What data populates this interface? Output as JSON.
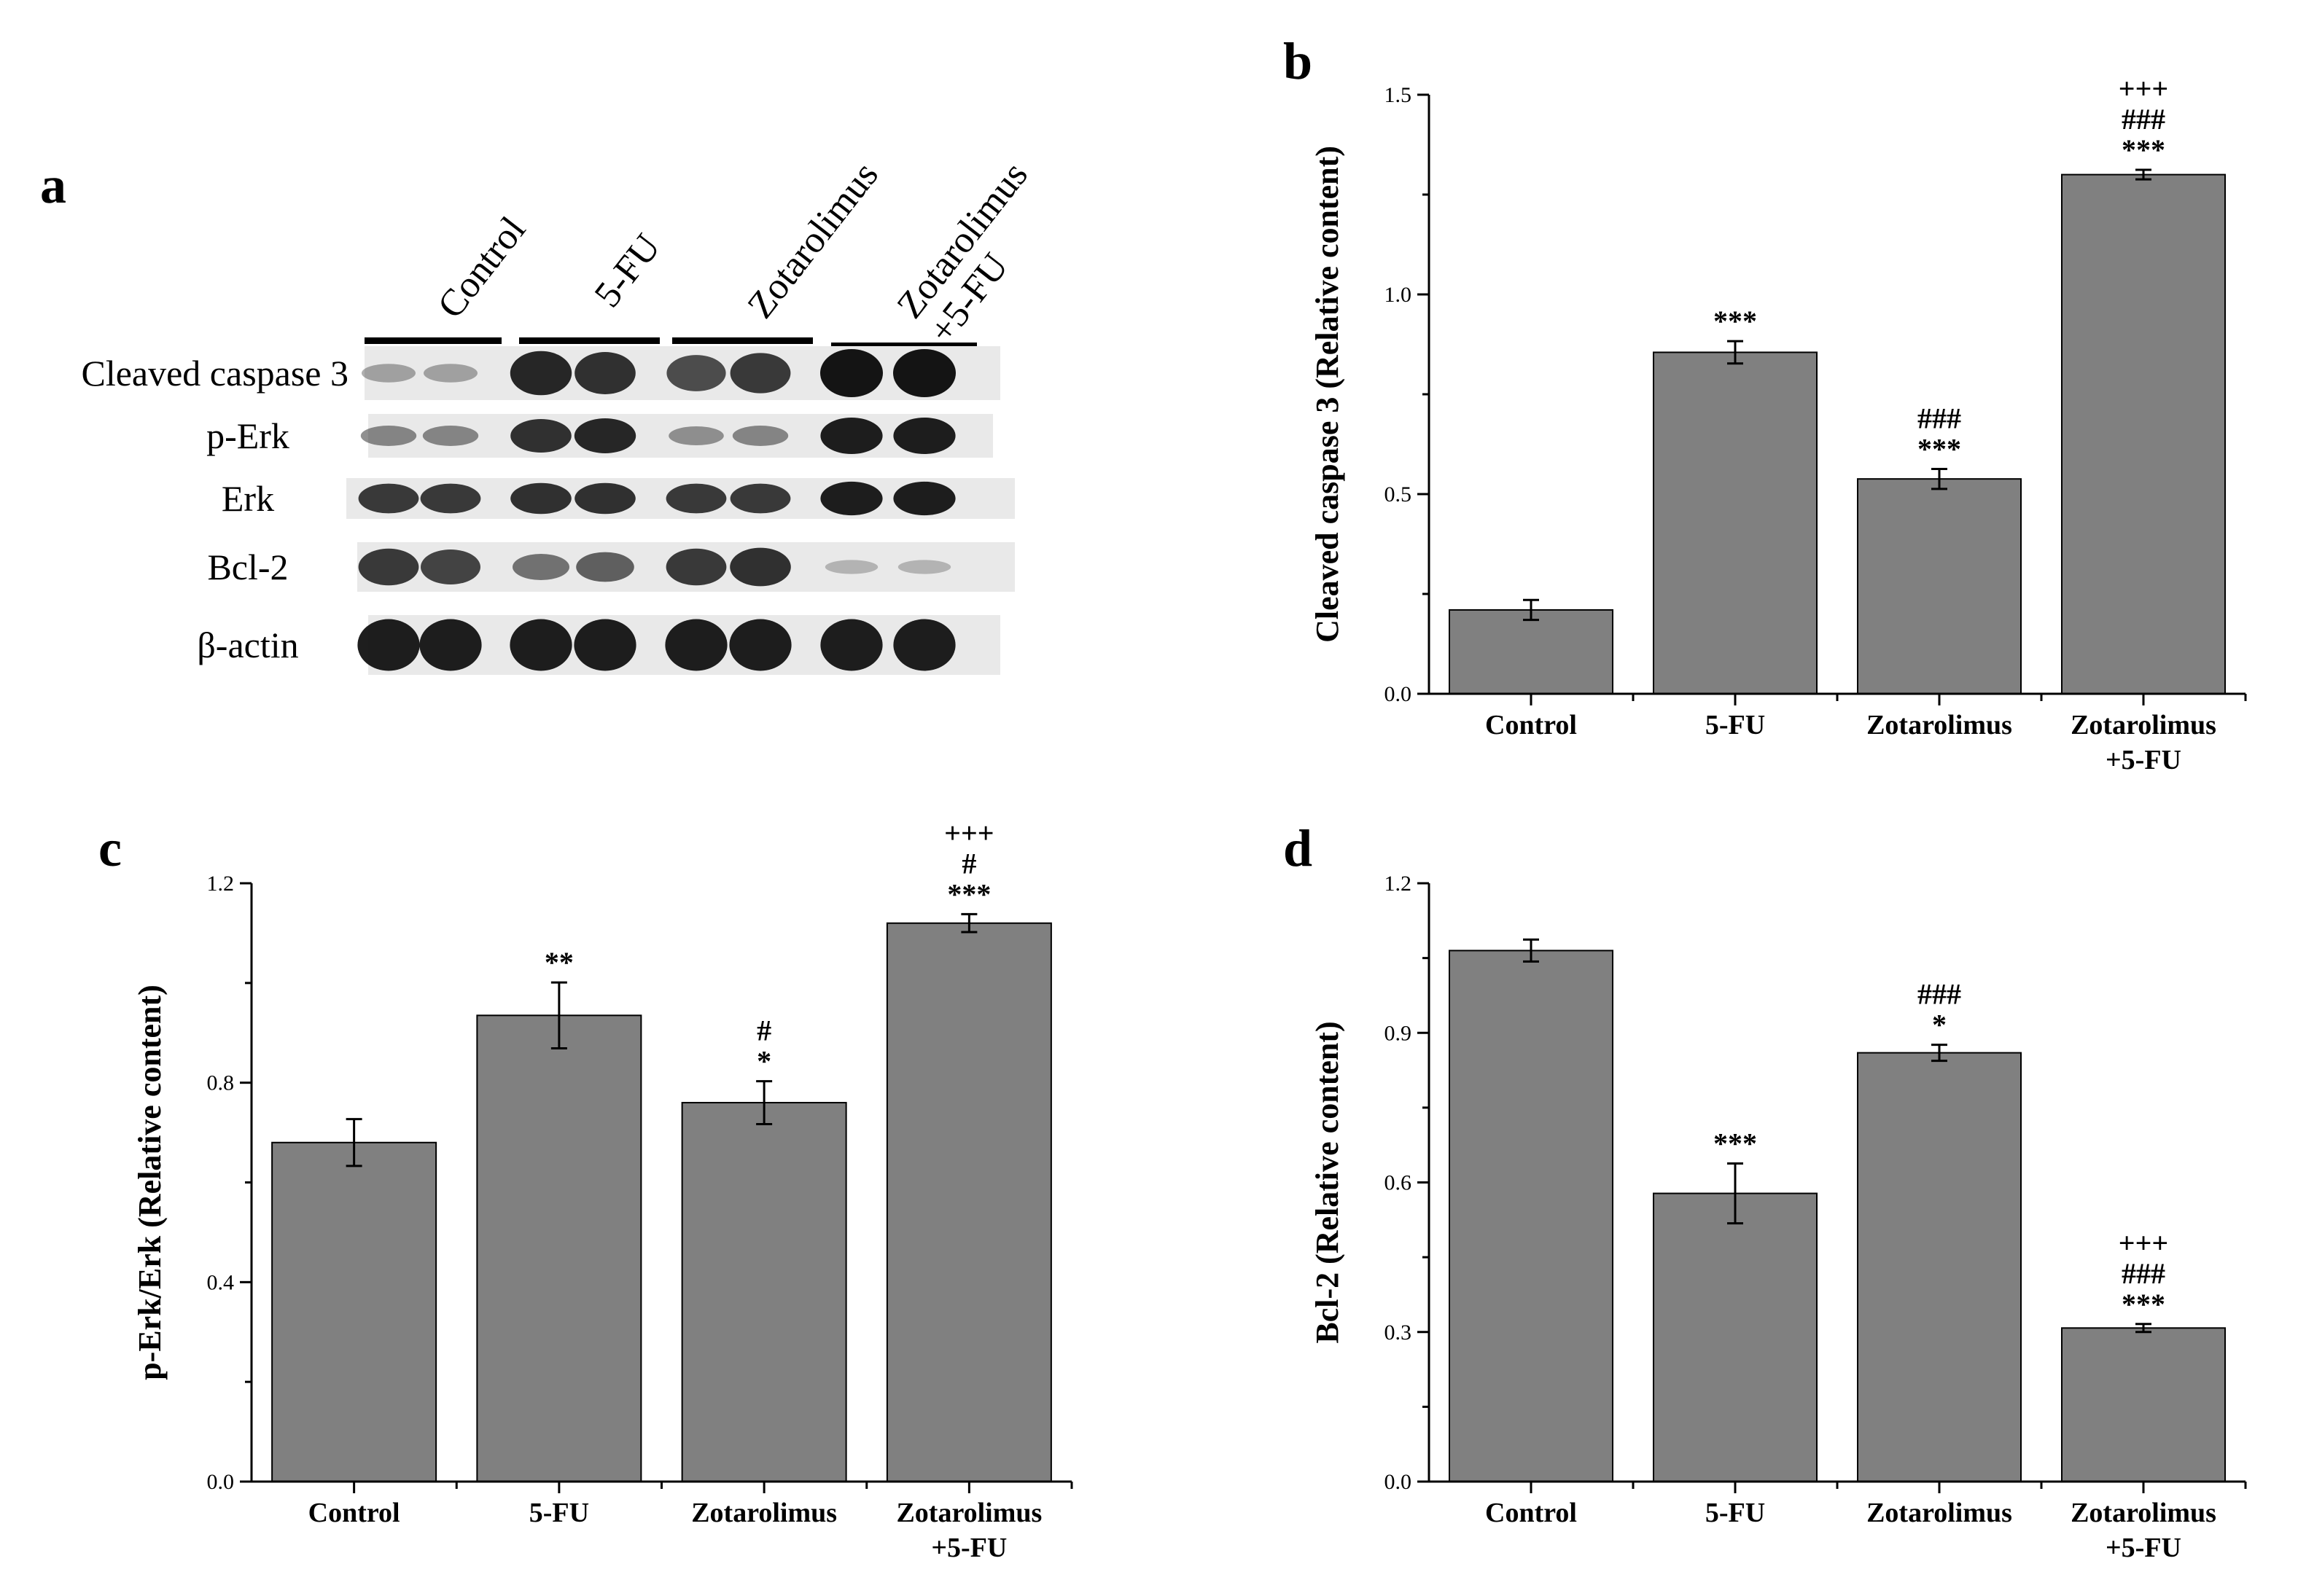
{
  "panel_letters": {
    "a": "a",
    "b": "b",
    "c": "c",
    "d": "d"
  },
  "colors": {
    "bar": "#808080",
    "axis": "#000000",
    "blot_bg": "#e9e9e9",
    "band": "#141414"
  },
  "western_blot": {
    "groups": [
      "Control",
      "5-FU",
      "Zotarolimus",
      "Zotarolimus\n+5-FU"
    ],
    "rows": [
      {
        "label": "Cleaved caspase 3",
        "intensity": [
          0.25,
          0.25,
          0.9,
          0.85,
          0.7,
          0.8,
          1.0,
          1.0
        ]
      },
      {
        "label": "p-Erk",
        "intensity": [
          0.4,
          0.4,
          0.85,
          0.9,
          0.35,
          0.4,
          0.95,
          0.95
        ]
      },
      {
        "label": "Erk",
        "intensity": [
          0.8,
          0.8,
          0.85,
          0.85,
          0.8,
          0.8,
          0.95,
          0.95
        ]
      },
      {
        "label": "Bcl-2",
        "intensity": [
          0.8,
          0.75,
          0.5,
          0.6,
          0.8,
          0.85,
          0.15,
          0.15
        ]
      },
      {
        "label": "β-actin",
        "intensity": [
          0.95,
          0.95,
          0.95,
          0.95,
          0.95,
          0.95,
          0.95,
          0.95
        ]
      }
    ]
  },
  "chart_data": [
    {
      "panel": "b",
      "type": "bar",
      "categories": [
        "Control",
        "5-FU",
        "Zotarolimus",
        "Zotarolimus\n+5-FU"
      ],
      "values": [
        0.21,
        0.855,
        0.538,
        1.3
      ],
      "errors": [
        0.025,
        0.028,
        0.025,
        0.012
      ],
      "annotations": [
        [],
        [
          "***"
        ],
        [
          "###",
          "***"
        ],
        [
          "+++",
          "###",
          "***"
        ]
      ],
      "ylabel": "Cleaved caspase 3 (Relative content)",
      "xlabel": "",
      "ylim": [
        0,
        1.5
      ],
      "yticks": [
        0.0,
        0.5,
        1.0,
        1.5
      ],
      "ytick_labels": [
        "0.0",
        "0.5",
        "1.0",
        "1.5"
      ]
    },
    {
      "panel": "c",
      "type": "bar",
      "categories": [
        "Control",
        "5-FU",
        "Zotarolimus",
        "Zotarolimus\n+5-FU"
      ],
      "values": [
        0.68,
        0.935,
        0.76,
        1.12
      ],
      "errors": [
        0.047,
        0.066,
        0.043,
        0.018
      ],
      "annotations": [
        [],
        [
          "**"
        ],
        [
          "#",
          "*"
        ],
        [
          "+++",
          "#",
          "***"
        ]
      ],
      "ylabel": "p-Erk/Erk (Relative content)",
      "xlabel": "",
      "ylim": [
        0,
        1.2
      ],
      "yticks": [
        0.0,
        0.4,
        0.8,
        1.2
      ],
      "ytick_labels": [
        "0.0",
        "0.4",
        "0.8",
        "1.2"
      ]
    },
    {
      "panel": "d",
      "type": "bar",
      "categories": [
        "Control",
        "5-FU",
        "Zotarolimus",
        "Zotarolimus\n+5-FU"
      ],
      "values": [
        1.065,
        0.578,
        0.86,
        0.308
      ],
      "errors": [
        0.022,
        0.06,
        0.016,
        0.008
      ],
      "annotations": [
        [],
        [
          "***"
        ],
        [
          "###",
          "*"
        ],
        [
          "+++",
          "###",
          "***"
        ]
      ],
      "ylabel": "Bcl-2 (Relative content)",
      "xlabel": "",
      "ylim": [
        0,
        1.2
      ],
      "yticks": [
        0.0,
        0.3,
        0.6,
        0.9,
        1.2
      ],
      "ytick_labels": [
        "0.0",
        "0.3",
        "0.6",
        "0.9",
        "1.2"
      ]
    }
  ]
}
